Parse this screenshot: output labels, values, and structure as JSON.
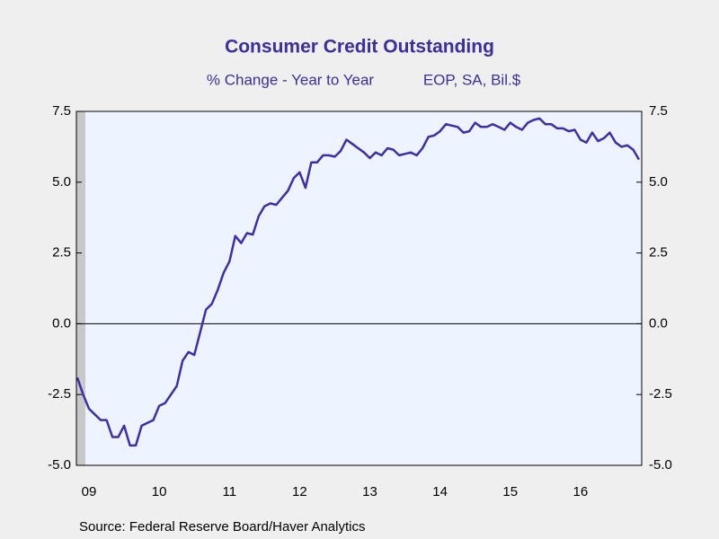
{
  "chart_data": {
    "type": "line",
    "title": "Consumer Credit Outstanding",
    "subtitle": [
      "% Change - Year to Year",
      "EOP, SA, Bil.$"
    ],
    "source": "Source:  Federal Reserve Board/Haver Analytics",
    "categories": [
      null,
      null,
      "09",
      null,
      null,
      null,
      null,
      null,
      null,
      null,
      null,
      null,
      null,
      null,
      "10",
      null,
      null,
      null,
      null,
      null,
      null,
      null,
      null,
      null,
      null,
      null,
      "11",
      null,
      null,
      null,
      null,
      null,
      null,
      null,
      null,
      null,
      null,
      null,
      "12",
      null,
      null,
      null,
      null,
      null,
      null,
      null,
      null,
      null,
      null,
      null,
      "13",
      null,
      null,
      null,
      null,
      null,
      null,
      null,
      null,
      null,
      null,
      null,
      "14",
      null,
      null,
      null,
      null,
      null,
      null,
      null,
      null,
      null,
      null,
      null,
      "15",
      null,
      null,
      null,
      null,
      null,
      null,
      null,
      null,
      null,
      null,
      null,
      "16",
      null,
      null,
      null,
      null,
      null,
      null,
      null,
      null,
      null,
      null
    ],
    "series": [
      {
        "name": "Consumer Credit Outstanding",
        "color": "#3f2dac",
        "values": [
          -1.9,
          -2.5,
          -3.0,
          -3.2,
          -3.4,
          -3.4,
          -4.0,
          -4.0,
          -3.6,
          -4.3,
          -4.3,
          -3.6,
          -3.5,
          -3.4,
          -2.9,
          -2.8,
          -2.5,
          -2.2,
          -1.3,
          -1.0,
          -1.1,
          -0.3,
          0.5,
          0.7,
          1.2,
          1.8,
          2.2,
          3.1,
          2.85,
          3.2,
          3.15,
          3.8,
          4.15,
          4.25,
          4.2,
          4.45,
          4.7,
          5.15,
          5.35,
          4.8,
          5.7,
          5.7,
          5.95,
          5.95,
          5.9,
          6.1,
          6.5,
          6.35,
          6.2,
          6.05,
          5.85,
          6.05,
          5.95,
          6.2,
          6.15,
          5.95,
          6.0,
          6.05,
          5.95,
          6.2,
          6.6,
          6.65,
          6.8,
          7.05,
          7.0,
          6.95,
          6.75,
          6.8,
          7.1,
          6.95,
          6.95,
          7.05,
          6.95,
          6.85,
          7.1,
          6.95,
          6.85,
          7.1,
          7.2,
          7.25,
          7.05,
          7.05,
          6.9,
          6.9,
          6.8,
          6.85,
          6.5,
          6.4,
          6.75,
          6.45,
          6.55,
          6.75,
          6.4,
          6.25,
          6.3,
          6.15,
          5.8
        ]
      }
    ],
    "ylim": [
      -5,
      7.5
    ],
    "yticks": [
      {
        "value": 7.5,
        "label": "7.5"
      },
      {
        "value": 5,
        "label": "5.0"
      },
      {
        "value": 2.5,
        "label": "2.5"
      },
      {
        "value": 0,
        "label": "0.0"
      },
      {
        "value": -2.5,
        "label": "-2.5"
      },
      {
        "value": -5,
        "label": "-5.0"
      }
    ],
    "grid": false
  }
}
